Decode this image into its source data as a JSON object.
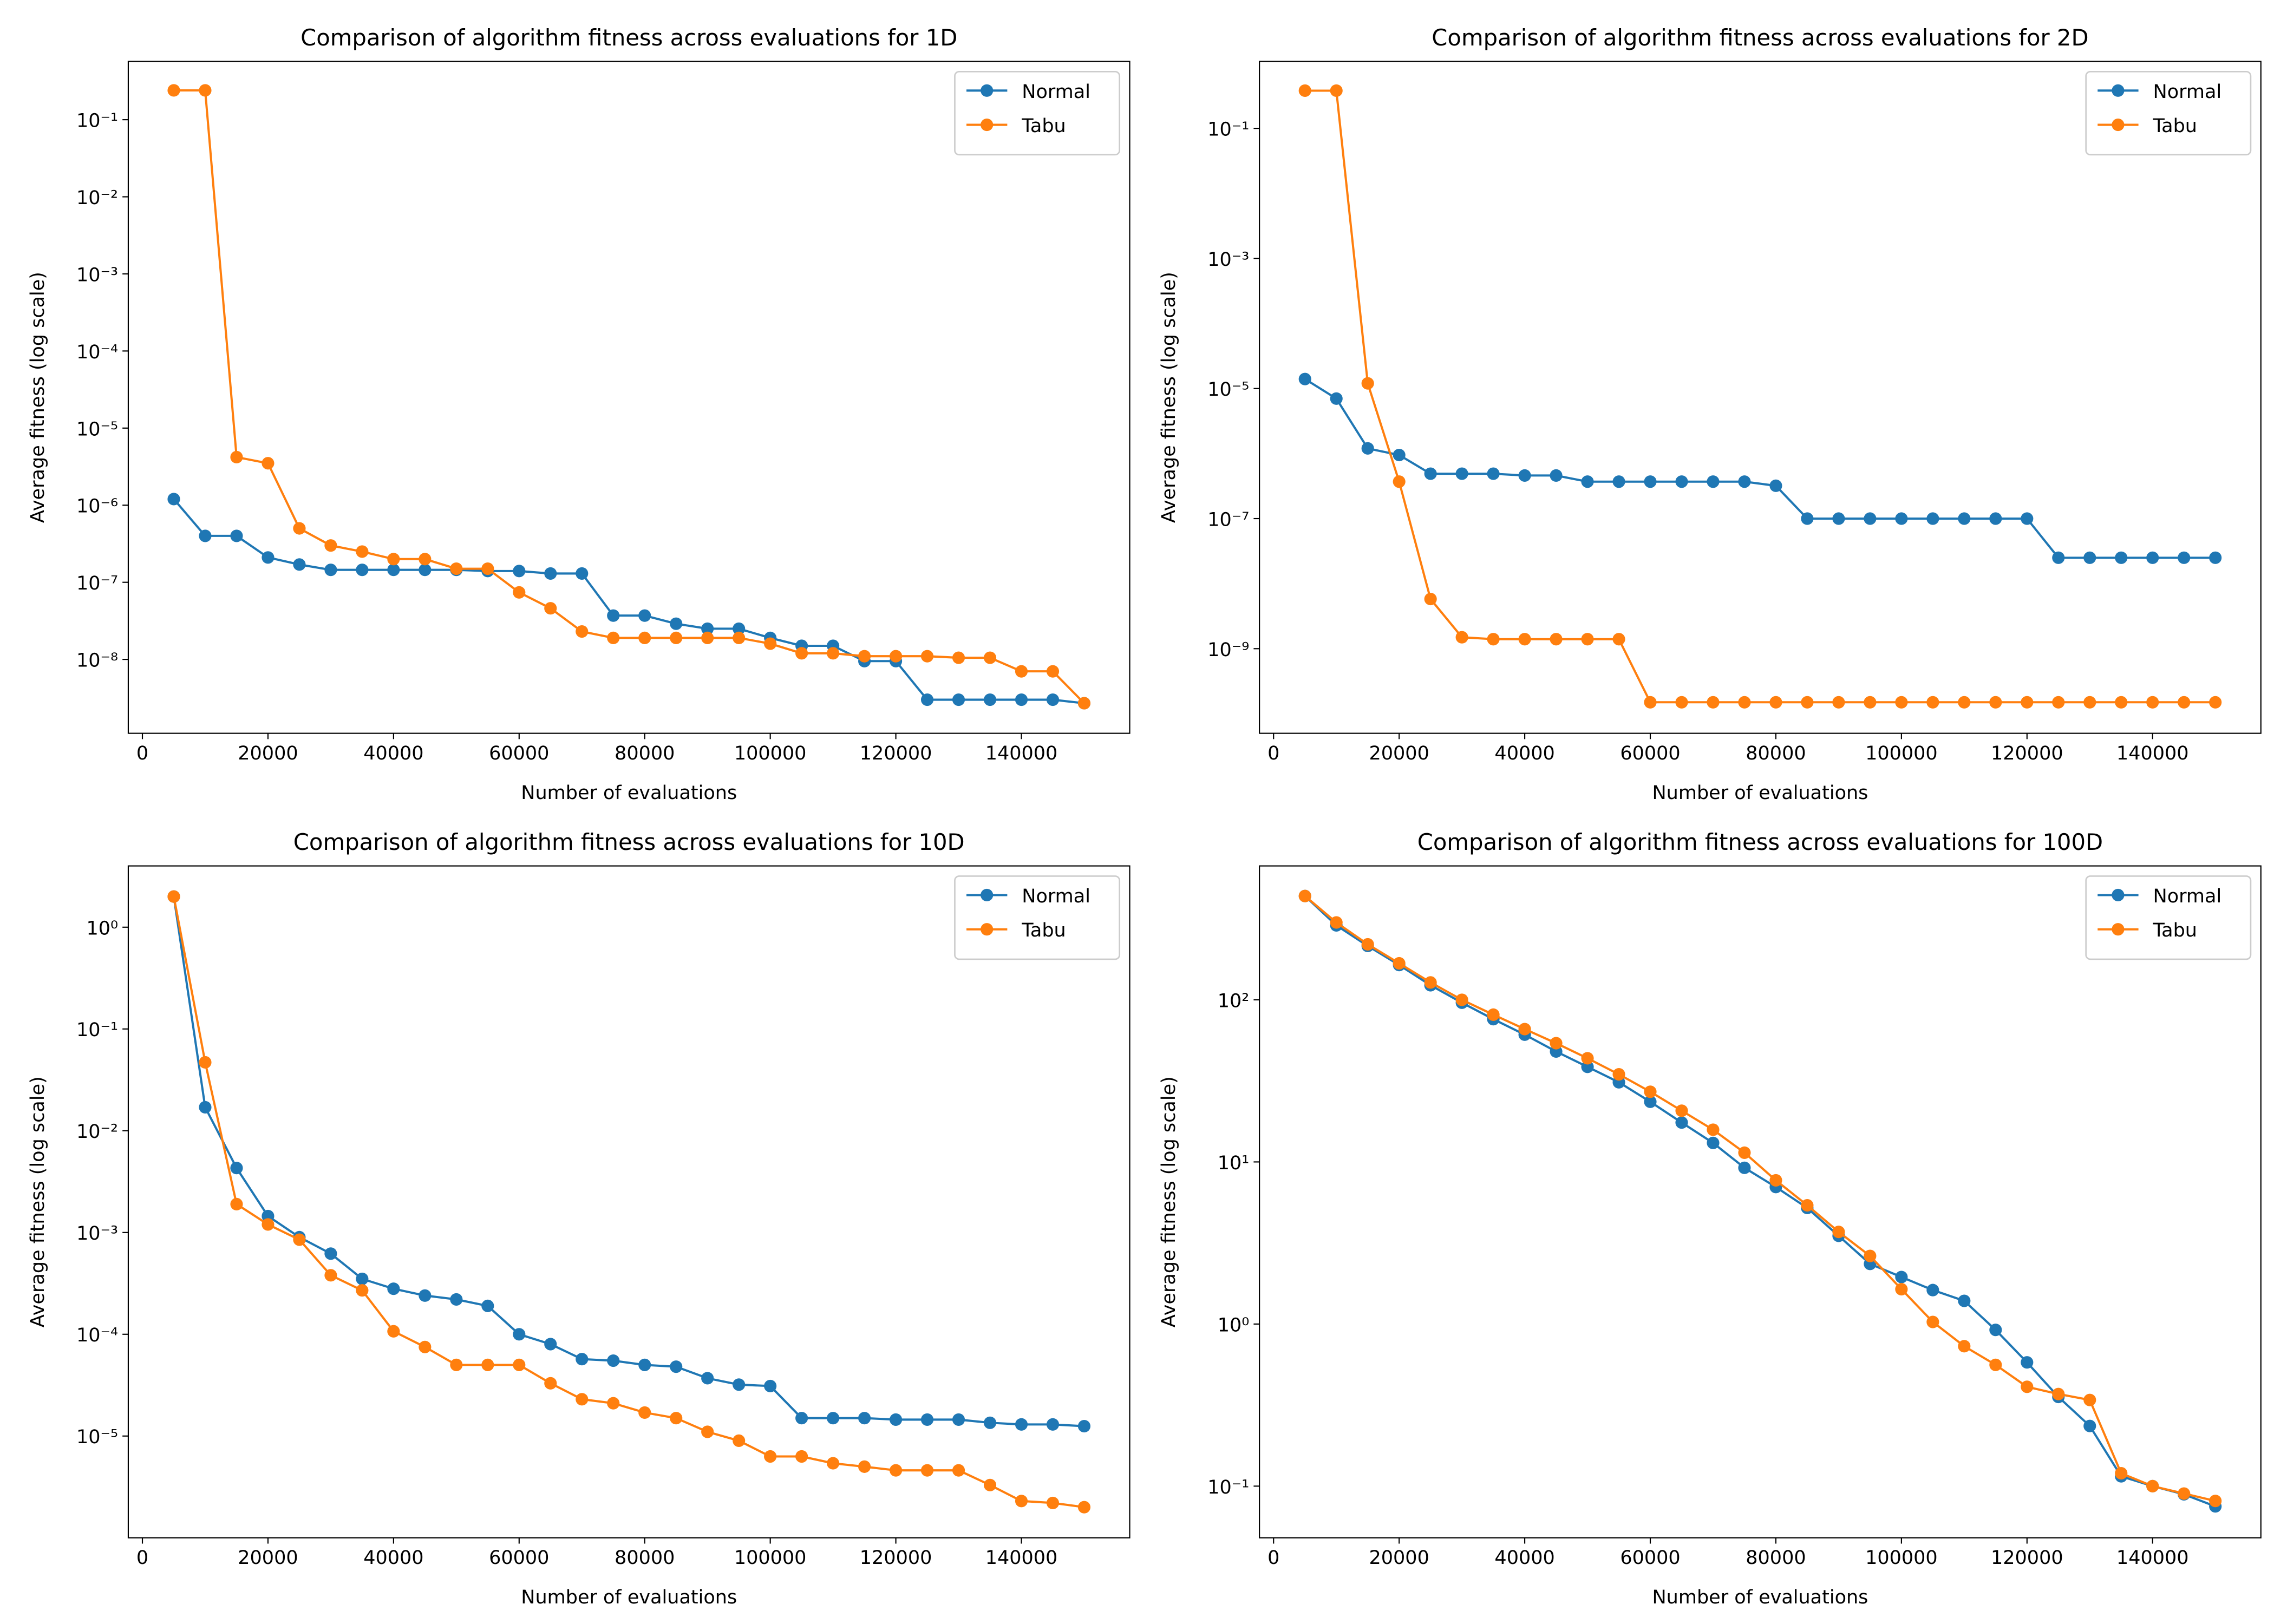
{
  "chart_data": [
    {
      "type": "line",
      "title": "Comparison of algorithm fitness across evaluations for 1D",
      "xlabel": "Number of evaluations",
      "ylabel": "Average fitness (log scale)",
      "yscale": "log",
      "grid": false,
      "legend": "upper right",
      "x": [
        5000,
        10000,
        15000,
        20000,
        25000,
        30000,
        35000,
        40000,
        45000,
        50000,
        55000,
        60000,
        65000,
        70000,
        75000,
        80000,
        85000,
        90000,
        95000,
        100000,
        105000,
        110000,
        115000,
        120000,
        125000,
        130000,
        135000,
        140000,
        145000,
        150000
      ],
      "xlim": [
        -2250,
        157250
      ],
      "xticks": [
        0,
        20000,
        40000,
        60000,
        80000,
        100000,
        120000,
        140000
      ],
      "ylim": [
        1.1e-09,
        0.57
      ],
      "yticks": [
        {
          "value": 1e-08,
          "label": "10⁻⁸"
        },
        {
          "value": 1e-07,
          "label": "10⁻⁷"
        },
        {
          "value": 1e-06,
          "label": "10⁻⁶"
        },
        {
          "value": 1e-05,
          "label": "10⁻⁵"
        },
        {
          "value": 0.0001,
          "label": "10⁻⁴"
        },
        {
          "value": 0.001,
          "label": "10⁻³"
        },
        {
          "value": 0.01,
          "label": "10⁻²"
        },
        {
          "value": 0.1,
          "label": "10⁻¹"
        }
      ],
      "series": [
        {
          "name": "Normal",
          "color": "#1f77b4",
          "values": [
            1.2e-06,
            4e-07,
            4e-07,
            2.1e-07,
            1.7e-07,
            1.45e-07,
            1.45e-07,
            1.45e-07,
            1.45e-07,
            1.45e-07,
            1.4e-07,
            1.4e-07,
            1.3e-07,
            1.3e-07,
            3.7e-08,
            3.7e-08,
            2.9e-08,
            2.5e-08,
            2.5e-08,
            1.9e-08,
            1.5e-08,
            1.5e-08,
            9.5e-09,
            9.5e-09,
            3e-09,
            3e-09,
            3e-09,
            3e-09,
            3e-09,
            2.7e-09
          ]
        },
        {
          "name": "Tabu",
          "color": "#ff7f0e",
          "values": [
            0.24,
            0.24,
            4.2e-06,
            3.5e-06,
            5e-07,
            3e-07,
            2.5e-07,
            2e-07,
            2e-07,
            1.5e-07,
            1.5e-07,
            7.4e-08,
            4.6e-08,
            2.3e-08,
            1.9e-08,
            1.9e-08,
            1.9e-08,
            1.9e-08,
            1.9e-08,
            1.6e-08,
            1.2e-08,
            1.2e-08,
            1.1e-08,
            1.1e-08,
            1.1e-08,
            1.05e-08,
            1.05e-08,
            7e-09,
            7e-09,
            2.7e-09
          ]
        }
      ]
    },
    {
      "type": "line",
      "title": "Comparison of algorithm fitness across evaluations for 2D",
      "xlabel": "Number of evaluations",
      "ylabel": "Average fitness (log scale)",
      "yscale": "log",
      "grid": false,
      "legend": "upper right",
      "x": [
        5000,
        10000,
        15000,
        20000,
        25000,
        30000,
        35000,
        40000,
        45000,
        50000,
        55000,
        60000,
        65000,
        70000,
        75000,
        80000,
        85000,
        90000,
        95000,
        100000,
        105000,
        110000,
        115000,
        120000,
        125000,
        130000,
        135000,
        140000,
        145000,
        150000
      ],
      "xlim": [
        -2250,
        157250
      ],
      "xticks": [
        0,
        20000,
        40000,
        60000,
        80000,
        100000,
        120000,
        140000
      ],
      "ylim": [
        5e-11,
        1.07
      ],
      "yticks": [
        {
          "value": 1e-09,
          "label": "10⁻⁹"
        },
        {
          "value": 1e-07,
          "label": "10⁻⁷"
        },
        {
          "value": 1e-05,
          "label": "10⁻⁵"
        },
        {
          "value": 0.001,
          "label": "10⁻³"
        },
        {
          "value": 0.1,
          "label": "10⁻¹"
        }
      ],
      "series": [
        {
          "name": "Normal",
          "color": "#1f77b4",
          "values": [
            1.4e-05,
            7e-06,
            1.2e-06,
            9.5e-07,
            4.9e-07,
            4.9e-07,
            4.9e-07,
            4.6e-07,
            4.6e-07,
            3.7e-07,
            3.7e-07,
            3.7e-07,
            3.7e-07,
            3.7e-07,
            3.7e-07,
            3.2e-07,
            1e-07,
            1e-07,
            1e-07,
            1e-07,
            1e-07,
            1e-07,
            1e-07,
            1e-07,
            2.5e-08,
            2.5e-08,
            2.5e-08,
            2.5e-08,
            2.5e-08,
            2.5e-08
          ]
        },
        {
          "name": "Tabu",
          "color": "#ff7f0e",
          "values": [
            0.38,
            0.38,
            1.2e-05,
            3.7e-07,
            5.8e-09,
            1.5e-09,
            1.4e-09,
            1.4e-09,
            1.4e-09,
            1.4e-09,
            1.4e-09,
            1.5e-10,
            1.5e-10,
            1.5e-10,
            1.5e-10,
            1.5e-10,
            1.5e-10,
            1.5e-10,
            1.5e-10,
            1.5e-10,
            1.5e-10,
            1.5e-10,
            1.5e-10,
            1.5e-10,
            1.5e-10,
            1.5e-10,
            1.5e-10,
            1.5e-10,
            1.5e-10,
            1.5e-10
          ]
        }
      ]
    },
    {
      "type": "line",
      "title": "Comparison of algorithm fitness across evaluations for 10D",
      "xlabel": "Number of evaluations",
      "ylabel": "Average fitness (log scale)",
      "yscale": "log",
      "grid": false,
      "legend": "upper right",
      "x": [
        5000,
        10000,
        15000,
        20000,
        25000,
        30000,
        35000,
        40000,
        45000,
        50000,
        55000,
        60000,
        65000,
        70000,
        75000,
        80000,
        85000,
        90000,
        95000,
        100000,
        105000,
        110000,
        115000,
        120000,
        125000,
        130000,
        135000,
        140000,
        145000,
        150000
      ],
      "xlim": [
        -2250,
        157250
      ],
      "xticks": [
        0,
        20000,
        40000,
        60000,
        80000,
        100000,
        120000,
        140000
      ],
      "ylim": [
        1e-06,
        4.0
      ],
      "yticks": [
        {
          "value": 1e-05,
          "label": "10⁻⁵"
        },
        {
          "value": 0.0001,
          "label": "10⁻⁴"
        },
        {
          "value": 0.001,
          "label": "10⁻³"
        },
        {
          "value": 0.01,
          "label": "10⁻²"
        },
        {
          "value": 0.1,
          "label": "10⁻¹"
        },
        {
          "value": 1,
          "label": "10⁰"
        }
      ],
      "series": [
        {
          "name": "Normal",
          "color": "#1f77b4",
          "values": [
            2.0,
            0.017,
            0.0043,
            0.00145,
            0.0009,
            0.00062,
            0.00035,
            0.00028,
            0.00024,
            0.00022,
            0.00019,
            0.0001,
            8e-05,
            5.7e-05,
            5.5e-05,
            5e-05,
            4.8e-05,
            3.7e-05,
            3.2e-05,
            3.1e-05,
            1.5e-05,
            1.5e-05,
            1.5e-05,
            1.45e-05,
            1.45e-05,
            1.45e-05,
            1.35e-05,
            1.3e-05,
            1.3e-05,
            1.25e-05
          ]
        },
        {
          "name": "Tabu",
          "color": "#ff7f0e",
          "values": [
            2.0,
            0.047,
            0.0019,
            0.0012,
            0.00085,
            0.00038,
            0.00027,
            0.000107,
            7.5e-05,
            5e-05,
            5e-05,
            5e-05,
            3.3e-05,
            2.3e-05,
            2.1e-05,
            1.7e-05,
            1.5e-05,
            1.1e-05,
            9e-06,
            6.3e-06,
            6.3e-06,
            5.4e-06,
            5e-06,
            4.6e-06,
            4.6e-06,
            4.6e-06,
            3.3e-06,
            2.3e-06,
            2.2e-06,
            2e-06
          ]
        }
      ]
    },
    {
      "type": "line",
      "title": "Comparison of algorithm fitness across evaluations for 100D",
      "xlabel": "Number of evaluations",
      "ylabel": "Average fitness (log scale)",
      "yscale": "log",
      "grid": false,
      "legend": "upper right",
      "x": [
        5000,
        10000,
        15000,
        20000,
        25000,
        30000,
        35000,
        40000,
        45000,
        50000,
        55000,
        60000,
        65000,
        70000,
        75000,
        80000,
        85000,
        90000,
        95000,
        100000,
        105000,
        110000,
        115000,
        120000,
        125000,
        130000,
        135000,
        140000,
        145000,
        150000
      ],
      "xlim": [
        -2250,
        157250
      ],
      "xticks": [
        0,
        20000,
        40000,
        60000,
        80000,
        100000,
        120000,
        140000
      ],
      "ylim": [
        0.048,
        670
      ],
      "yticks": [
        {
          "value": 0.1,
          "label": "10⁻¹"
        },
        {
          "value": 1,
          "label": "10⁰"
        },
        {
          "value": 10,
          "label": "10¹"
        },
        {
          "value": 100,
          "label": "10²"
        }
      ],
      "series": [
        {
          "name": "Normal",
          "color": "#1f77b4",
          "values": [
            437,
            288,
            215,
            164,
            123,
            96,
            76,
            61,
            48,
            38.6,
            31,
            23.5,
            17.5,
            13.1,
            9.2,
            7.0,
            5.2,
            3.5,
            2.35,
            1.95,
            1.62,
            1.39,
            0.92,
            0.58,
            0.355,
            0.235,
            0.115,
            0.1,
            0.089,
            0.075
          ]
        },
        {
          "name": "Tabu",
          "color": "#ff7f0e",
          "values": [
            437,
            300,
            220,
            168,
            128,
            100,
            81,
            66,
            54,
            43.6,
            34.7,
            27.1,
            20.7,
            15.8,
            11.4,
            7.7,
            5.4,
            3.7,
            2.63,
            1.64,
            1.03,
            0.73,
            0.56,
            0.41,
            0.37,
            0.34,
            0.12,
            0.1,
            0.09,
            0.081
          ]
        }
      ]
    }
  ]
}
